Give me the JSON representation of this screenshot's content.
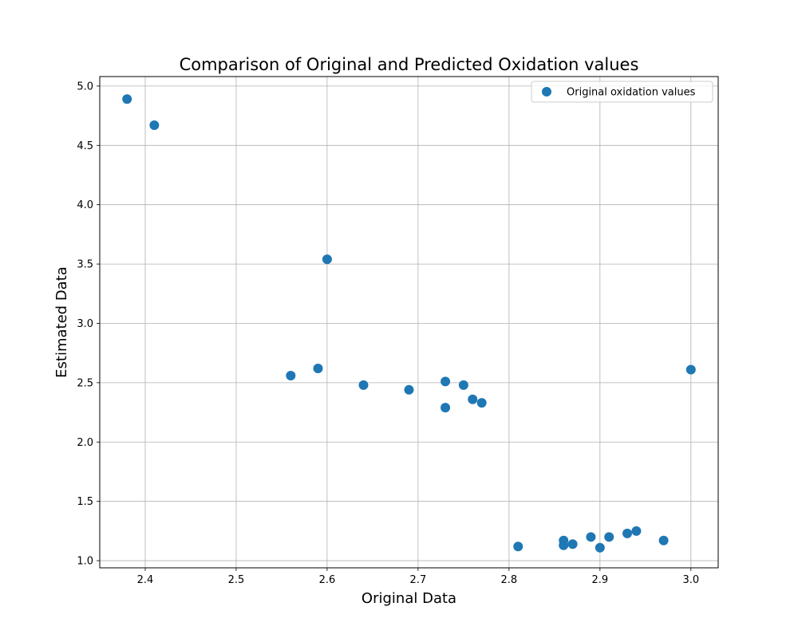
{
  "chart_data": {
    "type": "scatter",
    "title": "Comparison of Original and Predicted Oxidation values",
    "xlabel": "Original Data",
    "ylabel": "Estimated Data",
    "xlim": [
      2.35,
      3.03
    ],
    "ylim": [
      0.94,
      5.08
    ],
    "xticks": [
      2.4,
      2.5,
      2.6,
      2.7,
      2.8,
      2.9,
      3.0
    ],
    "xtick_labels": [
      "2.4",
      "2.5",
      "2.6",
      "2.7",
      "2.8",
      "2.9",
      "3.0"
    ],
    "yticks": [
      1.0,
      1.5,
      2.0,
      2.5,
      3.0,
      3.5,
      4.0,
      4.5,
      5.0
    ],
    "ytick_labels": [
      "1.0",
      "1.5",
      "2.0",
      "2.5",
      "3.0",
      "3.5",
      "4.0",
      "4.5",
      "5.0"
    ],
    "grid": true,
    "legend_position": "top-right",
    "series": [
      {
        "name": "Original oxidation values",
        "color": "#1f77b4",
        "points": [
          {
            "x": 2.38,
            "y": 4.89
          },
          {
            "x": 2.41,
            "y": 4.67
          },
          {
            "x": 2.6,
            "y": 3.54
          },
          {
            "x": 2.56,
            "y": 2.56
          },
          {
            "x": 2.59,
            "y": 2.62
          },
          {
            "x": 2.64,
            "y": 2.48
          },
          {
            "x": 2.69,
            "y": 2.44
          },
          {
            "x": 2.73,
            "y": 2.51
          },
          {
            "x": 2.73,
            "y": 2.29
          },
          {
            "x": 2.75,
            "y": 2.48
          },
          {
            "x": 2.76,
            "y": 2.36
          },
          {
            "x": 2.77,
            "y": 2.33
          },
          {
            "x": 2.81,
            "y": 1.12
          },
          {
            "x": 2.86,
            "y": 1.17
          },
          {
            "x": 2.86,
            "y": 1.13
          },
          {
            "x": 2.87,
            "y": 1.14
          },
          {
            "x": 2.89,
            "y": 1.2
          },
          {
            "x": 2.9,
            "y": 1.11
          },
          {
            "x": 2.91,
            "y": 1.2
          },
          {
            "x": 2.93,
            "y": 1.23
          },
          {
            "x": 2.94,
            "y": 1.25
          },
          {
            "x": 2.97,
            "y": 1.17
          },
          {
            "x": 3.0,
            "y": 2.61
          }
        ]
      }
    ]
  }
}
